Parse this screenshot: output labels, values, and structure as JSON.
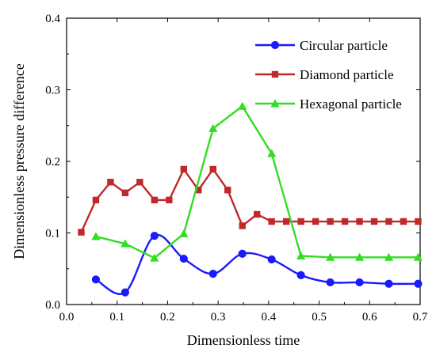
{
  "chart_data": {
    "type": "line",
    "xlabel": "Dimensionless time",
    "ylabel": "Dimensionless pressure difference",
    "xlim": [
      0.0,
      0.7
    ],
    "ylim": [
      0.0,
      0.4
    ],
    "xticks": [
      "0.0",
      "0.1",
      "0.2",
      "0.3",
      "0.4",
      "0.5",
      "0.6",
      "0.7"
    ],
    "yticks": [
      "0.0",
      "0.1",
      "0.2",
      "0.3",
      "0.4"
    ],
    "grid": false,
    "legend_position": "top-right",
    "series": [
      {
        "name": "Circular particle",
        "color": "#1a1aff",
        "marker": "circle",
        "smooth": true,
        "x": [
          0.058,
          0.116,
          0.174,
          0.232,
          0.29,
          0.348,
          0.406,
          0.464,
          0.522,
          0.58,
          0.638,
          0.696
        ],
        "y": [
          0.035,
          0.017,
          0.096,
          0.064,
          0.043,
          0.071,
          0.063,
          0.041,
          0.031,
          0.031,
          0.029,
          0.029
        ]
      },
      {
        "name": "Diamond particle",
        "color": "#c0282c",
        "marker": "square",
        "smooth": false,
        "x": [
          0.029,
          0.058,
          0.087,
          0.116,
          0.145,
          0.174,
          0.203,
          0.232,
          0.261,
          0.29,
          0.319,
          0.348,
          0.377,
          0.406,
          0.435,
          0.464,
          0.493,
          0.522,
          0.551,
          0.58,
          0.609,
          0.638,
          0.667,
          0.696
        ],
        "y": [
          0.101,
          0.146,
          0.171,
          0.156,
          0.171,
          0.146,
          0.146,
          0.189,
          0.16,
          0.189,
          0.16,
          0.11,
          0.126,
          0.116,
          0.116,
          0.116,
          0.116,
          0.116,
          0.116,
          0.116,
          0.116,
          0.116,
          0.116,
          0.116
        ]
      },
      {
        "name": "Hexagonal particle",
        "color": "#33dd22",
        "marker": "triangle",
        "smooth": false,
        "x": [
          0.058,
          0.116,
          0.174,
          0.232,
          0.29,
          0.348,
          0.406,
          0.464,
          0.522,
          0.58,
          0.638,
          0.696
        ],
        "y": [
          0.095,
          0.085,
          0.065,
          0.099,
          0.246,
          0.277,
          0.211,
          0.068,
          0.066,
          0.066,
          0.066,
          0.066
        ]
      }
    ]
  }
}
